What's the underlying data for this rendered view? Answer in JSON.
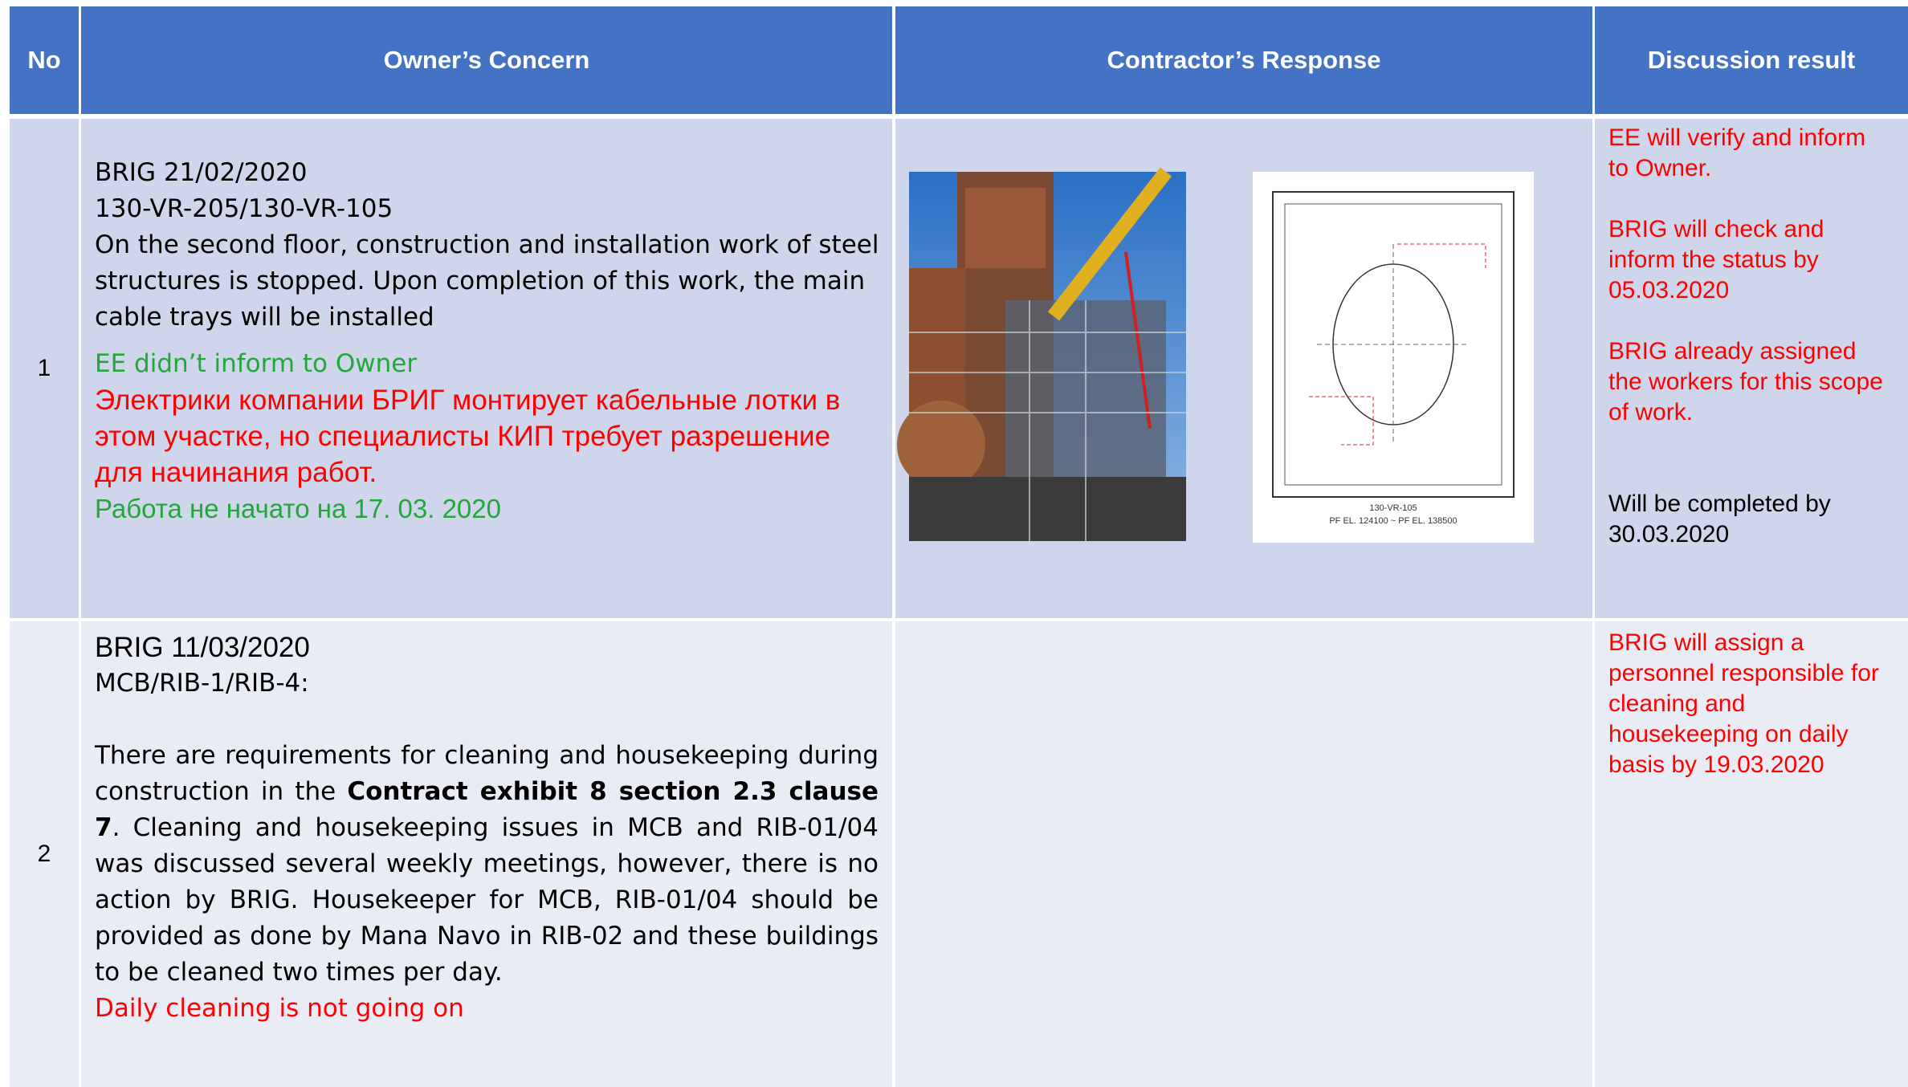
{
  "header": {
    "columns": [
      "No",
      "Owner’s Concern",
      "Contractor’s Response",
      "Discussion result"
    ]
  },
  "rows": [
    {
      "no": "1",
      "concern": {
        "lines": [
          "BRIG 21/02/2020",
          "130-VR-205/130-VR-105",
          "On the second floor, construction and installation work of steel",
          "structures is stopped. Upon completion of this work, the main",
          "cable trays will be installed"
        ],
        "status_en": "EE didn’t inform to Owner",
        "status_ru": [
          "Электрики компании БРИГ монтирует кабельные лотки в",
          "этом участке, но специалисты КИП требует разрешение",
          "для начинания работ."
        ],
        "status_ru2": "Работа не начато на 17. 03. 2020"
      },
      "response": {
        "drawing_labels": [
          "130-VR-105",
          "PF EL. 124100 ~ PF EL. 138500"
        ]
      },
      "result": {
        "red": [
          [
            "EE will verify and inform",
            "to Owner."
          ],
          [
            "BRIG will check and",
            "inform the status by",
            "05.03.2020"
          ],
          [
            "BRIG  already assigned",
            "the workers for this scope",
            "of work."
          ]
        ],
        "black": [
          "Will be completed by",
          "30.03.2020"
        ]
      }
    },
    {
      "no": "2",
      "concern": {
        "lines": [
          "BRIG 11/03/2020",
          "MCB/RIB-1/RIB-4:"
        ],
        "para_pre": "There are requirements for cleaning and housekeeping during construction in the ",
        "para_bold": "Contract exhibit 8 section 2.3 clause 7",
        "para_post": ". Cleaning and housekeeping issues in MCB and RIB-01/04 was discussed several weekly meetings, however, there is no action by BRIG. Housekeeper for MCB, RIB-01/04 should be provided as done by Mana Navo in RIB-02 and these buildings to be cleaned two times per day.",
        "status": "Daily cleaning is not going on"
      },
      "result": {
        "red": [
          [
            "BRIG will assign a",
            "personnel responsible for",
            "cleaning and",
            "housekeeping on daily",
            "basis by 19.03.2020"
          ]
        ]
      }
    }
  ]
}
